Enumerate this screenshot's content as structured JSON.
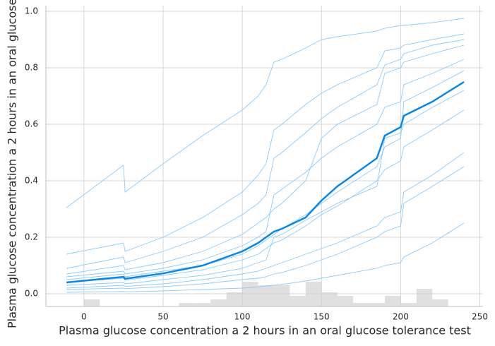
{
  "chart_data": {
    "type": "line",
    "xlabel": "Plasma glucose concentration a 2 hours in an oral glucose tolerance test",
    "ylabel": "Plasma glucose concentration a 2 hours in an oral glucose tolerance test",
    "x": [
      -11,
      25,
      26,
      50,
      75,
      100,
      110,
      115,
      120,
      125,
      140,
      150,
      160,
      185,
      190,
      200,
      202,
      220,
      240
    ],
    "series": [
      {
        "color": "#8ccbf9",
        "values": [
          0.305,
          0.455,
          0.36,
          0.46,
          0.56,
          0.65,
          0.7,
          0.74,
          0.82,
          0.83,
          0.87,
          0.9,
          0.91,
          0.93,
          0.94,
          0.95,
          0.95,
          0.96,
          0.975
        ]
      },
      {
        "color": "#8ccbf9",
        "values": [
          0.14,
          0.18,
          0.15,
          0.2,
          0.27,
          0.36,
          0.42,
          0.46,
          0.58,
          0.6,
          0.67,
          0.71,
          0.74,
          0.8,
          0.86,
          0.87,
          0.88,
          0.9,
          0.92
        ]
      },
      {
        "color": "#8ccbf9",
        "values": [
          0.09,
          0.13,
          0.11,
          0.15,
          0.2,
          0.28,
          0.32,
          0.35,
          0.48,
          0.5,
          0.57,
          0.62,
          0.66,
          0.74,
          0.81,
          0.83,
          0.85,
          0.88,
          0.9
        ]
      },
      {
        "color": "#8ccbf9",
        "values": [
          0.07,
          0.1,
          0.085,
          0.11,
          0.15,
          0.21,
          0.25,
          0.27,
          0.3,
          0.32,
          0.4,
          0.55,
          0.6,
          0.67,
          0.78,
          0.8,
          0.82,
          0.85,
          0.88
        ]
      },
      {
        "color": "#8ccbf9",
        "values": [
          0.06,
          0.08,
          0.07,
          0.09,
          0.12,
          0.17,
          0.2,
          0.22,
          0.35,
          0.37,
          0.43,
          0.48,
          0.52,
          0.6,
          0.66,
          0.68,
          0.74,
          0.78,
          0.83
        ]
      },
      {
        "color": "#8ccbf9",
        "values": [
          0.05,
          0.07,
          0.06,
          0.08,
          0.1,
          0.14,
          0.17,
          0.19,
          0.21,
          0.23,
          0.28,
          0.32,
          0.36,
          0.45,
          0.52,
          0.55,
          0.68,
          0.73,
          0.79
        ]
      },
      {
        "color": "#8ccbf9",
        "values": [
          0.04,
          0.055,
          0.048,
          0.065,
          0.085,
          0.12,
          0.14,
          0.16,
          0.18,
          0.19,
          0.24,
          0.28,
          0.31,
          0.4,
          0.44,
          0.47,
          0.52,
          0.58,
          0.65
        ]
      },
      {
        "color": "#8ccbf9",
        "values": [
          0.03,
          0.04,
          0.035,
          0.05,
          0.065,
          0.09,
          0.11,
          0.12,
          0.2,
          0.21,
          0.26,
          0.29,
          0.32,
          0.38,
          0.55,
          0.57,
          0.6,
          0.66,
          0.72
        ]
      },
      {
        "color": "#8ccbf9",
        "values": [
          0.02,
          0.03,
          0.026,
          0.035,
          0.05,
          0.07,
          0.08,
          0.09,
          0.1,
          0.11,
          0.14,
          0.16,
          0.18,
          0.24,
          0.27,
          0.29,
          0.36,
          0.42,
          0.5
        ]
      },
      {
        "color": "#8ccbf9",
        "values": [
          0.015,
          0.02,
          0.018,
          0.025,
          0.035,
          0.05,
          0.055,
          0.06,
          0.07,
          0.075,
          0.1,
          0.12,
          0.14,
          0.2,
          0.22,
          0.24,
          0.32,
          0.38,
          0.45
        ]
      },
      {
        "color": "#8ccbf9",
        "values": [
          0.005,
          0.008,
          0.007,
          0.01,
          0.015,
          0.02,
          0.024,
          0.027,
          0.03,
          0.033,
          0.045,
          0.055,
          0.065,
          0.09,
          0.1,
          0.11,
          0.13,
          0.18,
          0.25
        ]
      },
      {
        "color": "#0b86e3",
        "values": [
          0.04,
          0.06,
          0.053,
          0.072,
          0.1,
          0.15,
          0.18,
          0.2,
          0.22,
          0.23,
          0.27,
          0.33,
          0.38,
          0.48,
          0.56,
          0.59,
          0.63,
          0.68,
          0.75
        ]
      }
    ],
    "histogram": {
      "color": "#cccccc",
      "bins": [
        0,
        10,
        20,
        30,
        40,
        50,
        60,
        70,
        80,
        90,
        100,
        110,
        120,
        130,
        140,
        150,
        160,
        170,
        180,
        190,
        200,
        210,
        220,
        230,
        240
      ],
      "counts": [
        2,
        0,
        0,
        0,
        0,
        0,
        1,
        1,
        2,
        4,
        7,
        6,
        6,
        3,
        7,
        4,
        3,
        1,
        1,
        3,
        1,
        5,
        2,
        0
      ]
    },
    "xlim": [
      -24,
      252
    ],
    "ylim": [
      -0.045,
      1.02
    ],
    "xticks": [
      0,
      50,
      100,
      150,
      200,
      250
    ],
    "yticks": [
      {
        "value": 0,
        "label": "0.0"
      },
      {
        "value": 0.2,
        "label": "0.2"
      },
      {
        "value": 0.4,
        "label": "0.4"
      },
      {
        "value": 0.6,
        "label": "0.6"
      },
      {
        "value": 0.8,
        "label": "0.8"
      },
      {
        "value": 1.0,
        "label": "1.0"
      }
    ],
    "grid": true
  }
}
